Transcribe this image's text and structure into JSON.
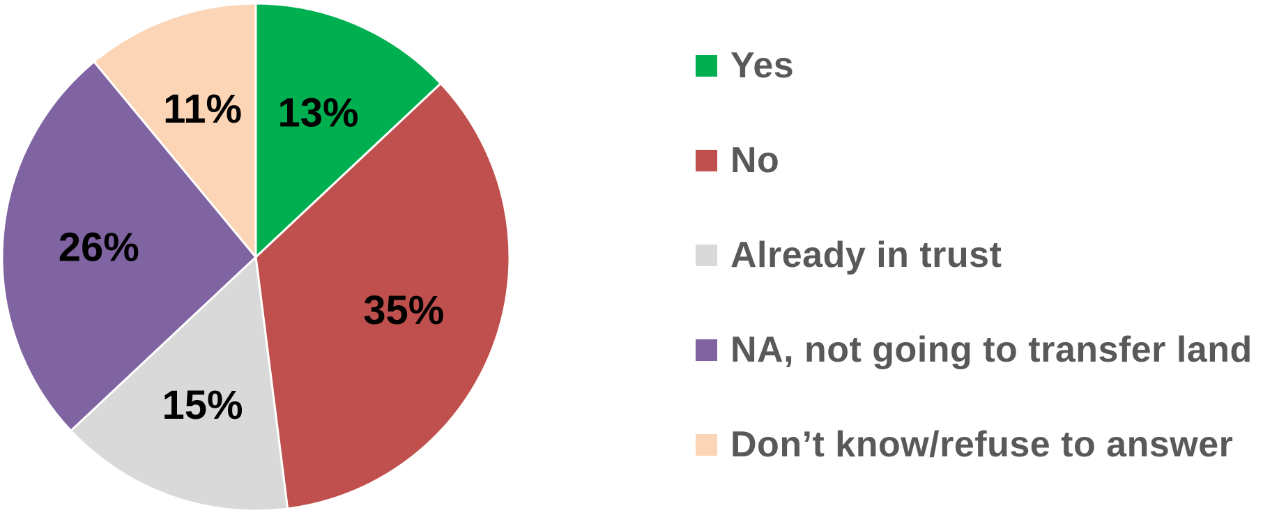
{
  "chart_data": {
    "type": "pie",
    "title": "",
    "slices": [
      {
        "label": "Yes",
        "value": 13,
        "display": "13%",
        "color": "#00B050"
      },
      {
        "label": "No",
        "value": 35,
        "display": "35%",
        "color": "#C0504D"
      },
      {
        "label": "Already in trust",
        "value": 15,
        "display": "15%",
        "color": "#D9D9D9"
      },
      {
        "label": "NA, not going to transfer land",
        "value": 26,
        "display": "26%",
        "color": "#8064A2"
      },
      {
        "label": "Don’t know/refuse to answer",
        "value": 11,
        "display": "11%",
        "color": "#FBD5B5"
      }
    ],
    "start_angle": "12 o'clock",
    "direction": "clockwise",
    "legend_position": "right"
  },
  "legend": {
    "text_color": "#595959"
  }
}
